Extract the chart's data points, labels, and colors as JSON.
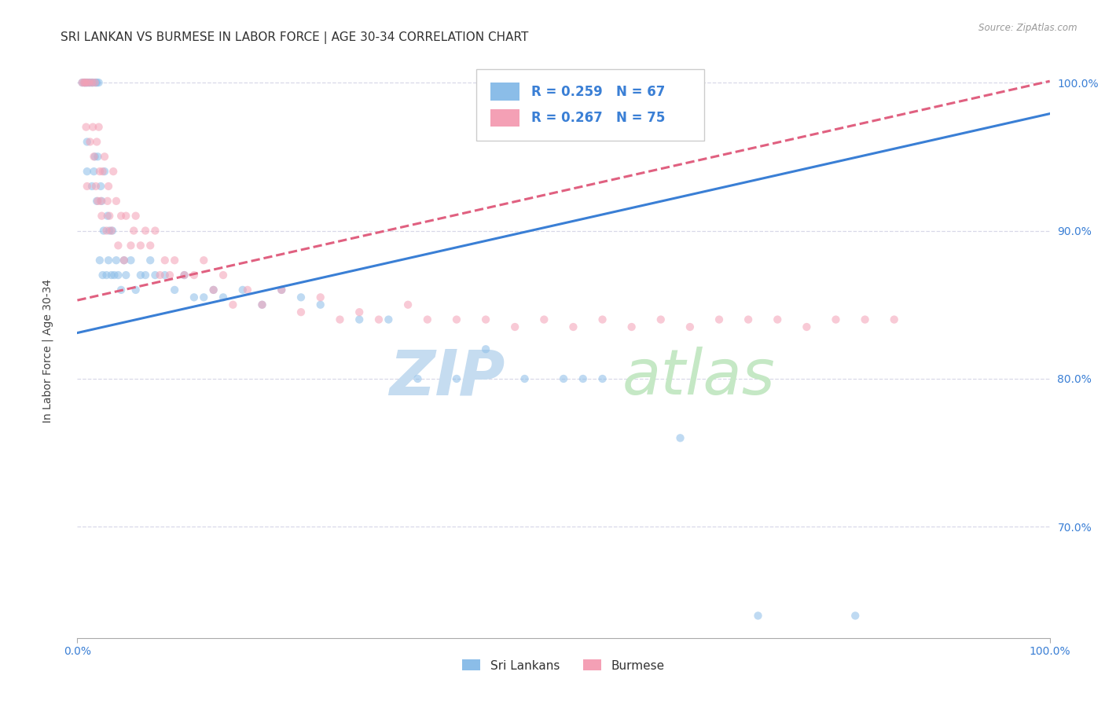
{
  "title": "SRI LANKAN VS BURMESE IN LABOR FORCE | AGE 30-34 CORRELATION CHART",
  "source": "Source: ZipAtlas.com",
  "ylabel": "In Labor Force | Age 30-34",
  "ytick_labels": [
    "70.0%",
    "80.0%",
    "90.0%",
    "100.0%"
  ],
  "ytick_values": [
    0.7,
    0.8,
    0.9,
    1.0
  ],
  "xlim": [
    0.0,
    1.0
  ],
  "ylim": [
    0.625,
    1.025
  ],
  "series1_label": "Sri Lankans",
  "series2_label": "Burmese",
  "series1_color": "#8bbde8",
  "series2_color": "#f4a0b5",
  "trendline1_color": "#3a7fd5",
  "trendline2_color": "#e06080",
  "trendline2_style": "--",
  "watermark_zip": "ZIP",
  "watermark_atlas": "atlas",
  "background_color": "#ffffff",
  "sri_lankans_x": [
    0.005,
    0.007,
    0.008,
    0.009,
    0.01,
    0.01,
    0.01,
    0.012,
    0.013,
    0.015,
    0.015,
    0.016,
    0.017,
    0.018,
    0.019,
    0.02,
    0.02,
    0.021,
    0.022,
    0.023,
    0.024,
    0.025,
    0.026,
    0.027,
    0.028,
    0.03,
    0.031,
    0.032,
    0.033,
    0.035,
    0.036,
    0.038,
    0.04,
    0.042,
    0.045,
    0.048,
    0.05,
    0.055,
    0.06,
    0.065,
    0.07,
    0.075,
    0.08,
    0.09,
    0.1,
    0.11,
    0.12,
    0.13,
    0.14,
    0.15,
    0.17,
    0.19,
    0.21,
    0.23,
    0.25,
    0.29,
    0.32,
    0.35,
    0.39,
    0.42,
    0.46,
    0.5,
    0.52,
    0.54,
    0.62,
    0.7,
    0.8
  ],
  "sri_lankans_y": [
    1.0,
    1.0,
    1.0,
    1.0,
    1.0,
    0.96,
    0.94,
    1.0,
    1.0,
    1.0,
    0.93,
    1.0,
    0.94,
    0.95,
    1.0,
    1.0,
    0.92,
    0.95,
    1.0,
    0.88,
    0.93,
    0.92,
    0.87,
    0.9,
    0.94,
    0.87,
    0.91,
    0.88,
    0.9,
    0.87,
    0.9,
    0.87,
    0.88,
    0.87,
    0.86,
    0.88,
    0.87,
    0.88,
    0.86,
    0.87,
    0.87,
    0.88,
    0.87,
    0.87,
    0.86,
    0.87,
    0.855,
    0.855,
    0.86,
    0.855,
    0.86,
    0.85,
    0.86,
    0.855,
    0.85,
    0.84,
    0.84,
    0.8,
    0.8,
    0.82,
    0.8,
    0.8,
    0.8,
    0.8,
    0.76,
    0.64,
    0.64
  ],
  "burmese_x": [
    0.005,
    0.007,
    0.008,
    0.009,
    0.01,
    0.01,
    0.012,
    0.013,
    0.015,
    0.016,
    0.017,
    0.018,
    0.019,
    0.02,
    0.021,
    0.022,
    0.023,
    0.024,
    0.025,
    0.026,
    0.028,
    0.03,
    0.031,
    0.032,
    0.033,
    0.035,
    0.037,
    0.04,
    0.042,
    0.045,
    0.048,
    0.05,
    0.055,
    0.058,
    0.06,
    0.065,
    0.07,
    0.075,
    0.08,
    0.085,
    0.09,
    0.095,
    0.1,
    0.11,
    0.12,
    0.13,
    0.14,
    0.15,
    0.16,
    0.175,
    0.19,
    0.21,
    0.23,
    0.25,
    0.27,
    0.29,
    0.31,
    0.34,
    0.36,
    0.39,
    0.42,
    0.45,
    0.48,
    0.51,
    0.54,
    0.57,
    0.6,
    0.63,
    0.66,
    0.69,
    0.72,
    0.75,
    0.78,
    0.81,
    0.84
  ],
  "burmese_y": [
    1.0,
    1.0,
    1.0,
    0.97,
    1.0,
    0.93,
    1.0,
    0.96,
    1.0,
    0.97,
    0.95,
    1.0,
    0.93,
    0.96,
    0.92,
    0.97,
    0.94,
    0.92,
    0.91,
    0.94,
    0.95,
    0.9,
    0.92,
    0.93,
    0.91,
    0.9,
    0.94,
    0.92,
    0.89,
    0.91,
    0.88,
    0.91,
    0.89,
    0.9,
    0.91,
    0.89,
    0.9,
    0.89,
    0.9,
    0.87,
    0.88,
    0.87,
    0.88,
    0.87,
    0.87,
    0.88,
    0.86,
    0.87,
    0.85,
    0.86,
    0.85,
    0.86,
    0.845,
    0.855,
    0.84,
    0.845,
    0.84,
    0.85,
    0.84,
    0.84,
    0.84,
    0.835,
    0.84,
    0.835,
    0.84,
    0.835,
    0.84,
    0.835,
    0.84,
    0.84,
    0.84,
    0.835,
    0.84,
    0.84,
    0.84
  ],
  "grid_color": "#d8d8e8",
  "title_fontsize": 11,
  "axis_fontsize": 10,
  "tick_fontsize": 10,
  "dot_size": 55,
  "dot_alpha": 0.55,
  "trendline1_intercept": 0.831,
  "trendline1_slope": 0.148,
  "trendline2_intercept": 0.853,
  "trendline2_slope": 0.148
}
